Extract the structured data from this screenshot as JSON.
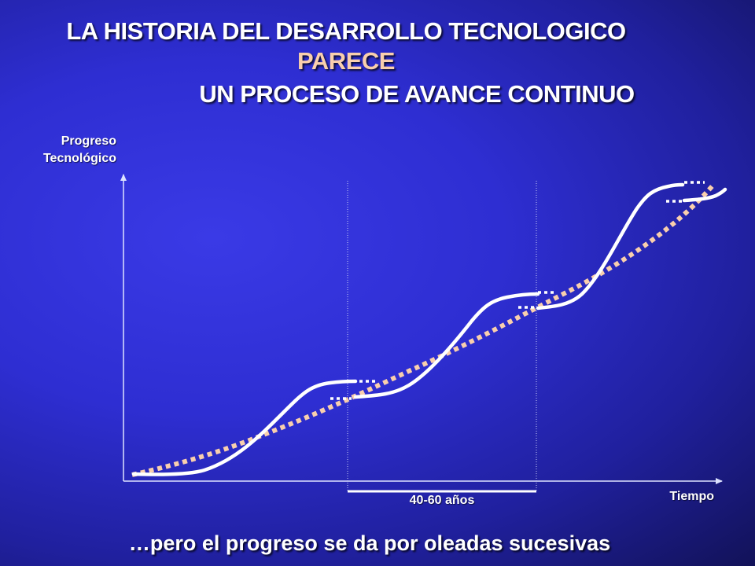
{
  "title": {
    "line1": "LA HISTORIA DEL DESARROLLO TECNOLOGICO",
    "line2": "PARECE",
    "line3": "UN PROCESO DE AVANCE CONTINUO"
  },
  "axes": {
    "y_label_line1": "Progreso",
    "y_label_line2": "Tecnológico",
    "x_label": "Tiempo"
  },
  "wave_period_label": "40-60 años",
  "footer": "…pero el progreso se da por oleadas sucesivas",
  "colors": {
    "background": "#2e2ed2",
    "curves": "#ffffff",
    "trend": "#f9cfad",
    "title_highlight": "#f9cfad"
  }
}
